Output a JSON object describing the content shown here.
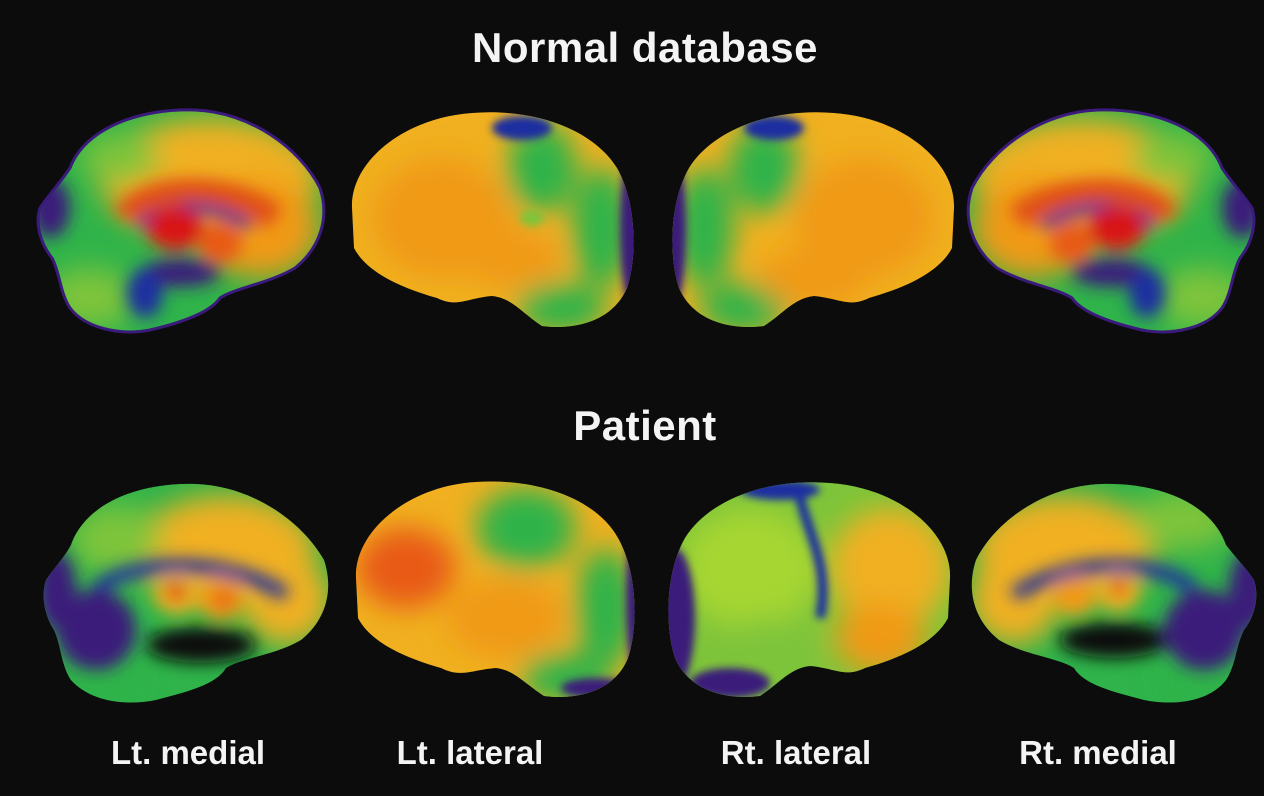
{
  "titles": {
    "top": "Normal database",
    "bottom": "Patient"
  },
  "view_labels": [
    "Lt. medial",
    "Lt. lateral",
    "Rt. lateral",
    "Rt. medial"
  ],
  "colors": {
    "background": "#0c0c0d",
    "text": "#f4f4f4",
    "colormap": [
      "#3a1a7a",
      "#1c2fa0",
      "#1a7f8a",
      "#2fb34a",
      "#a6d631",
      "#f0c020",
      "#f09a18",
      "#e85a18",
      "#d81818"
    ]
  }
}
